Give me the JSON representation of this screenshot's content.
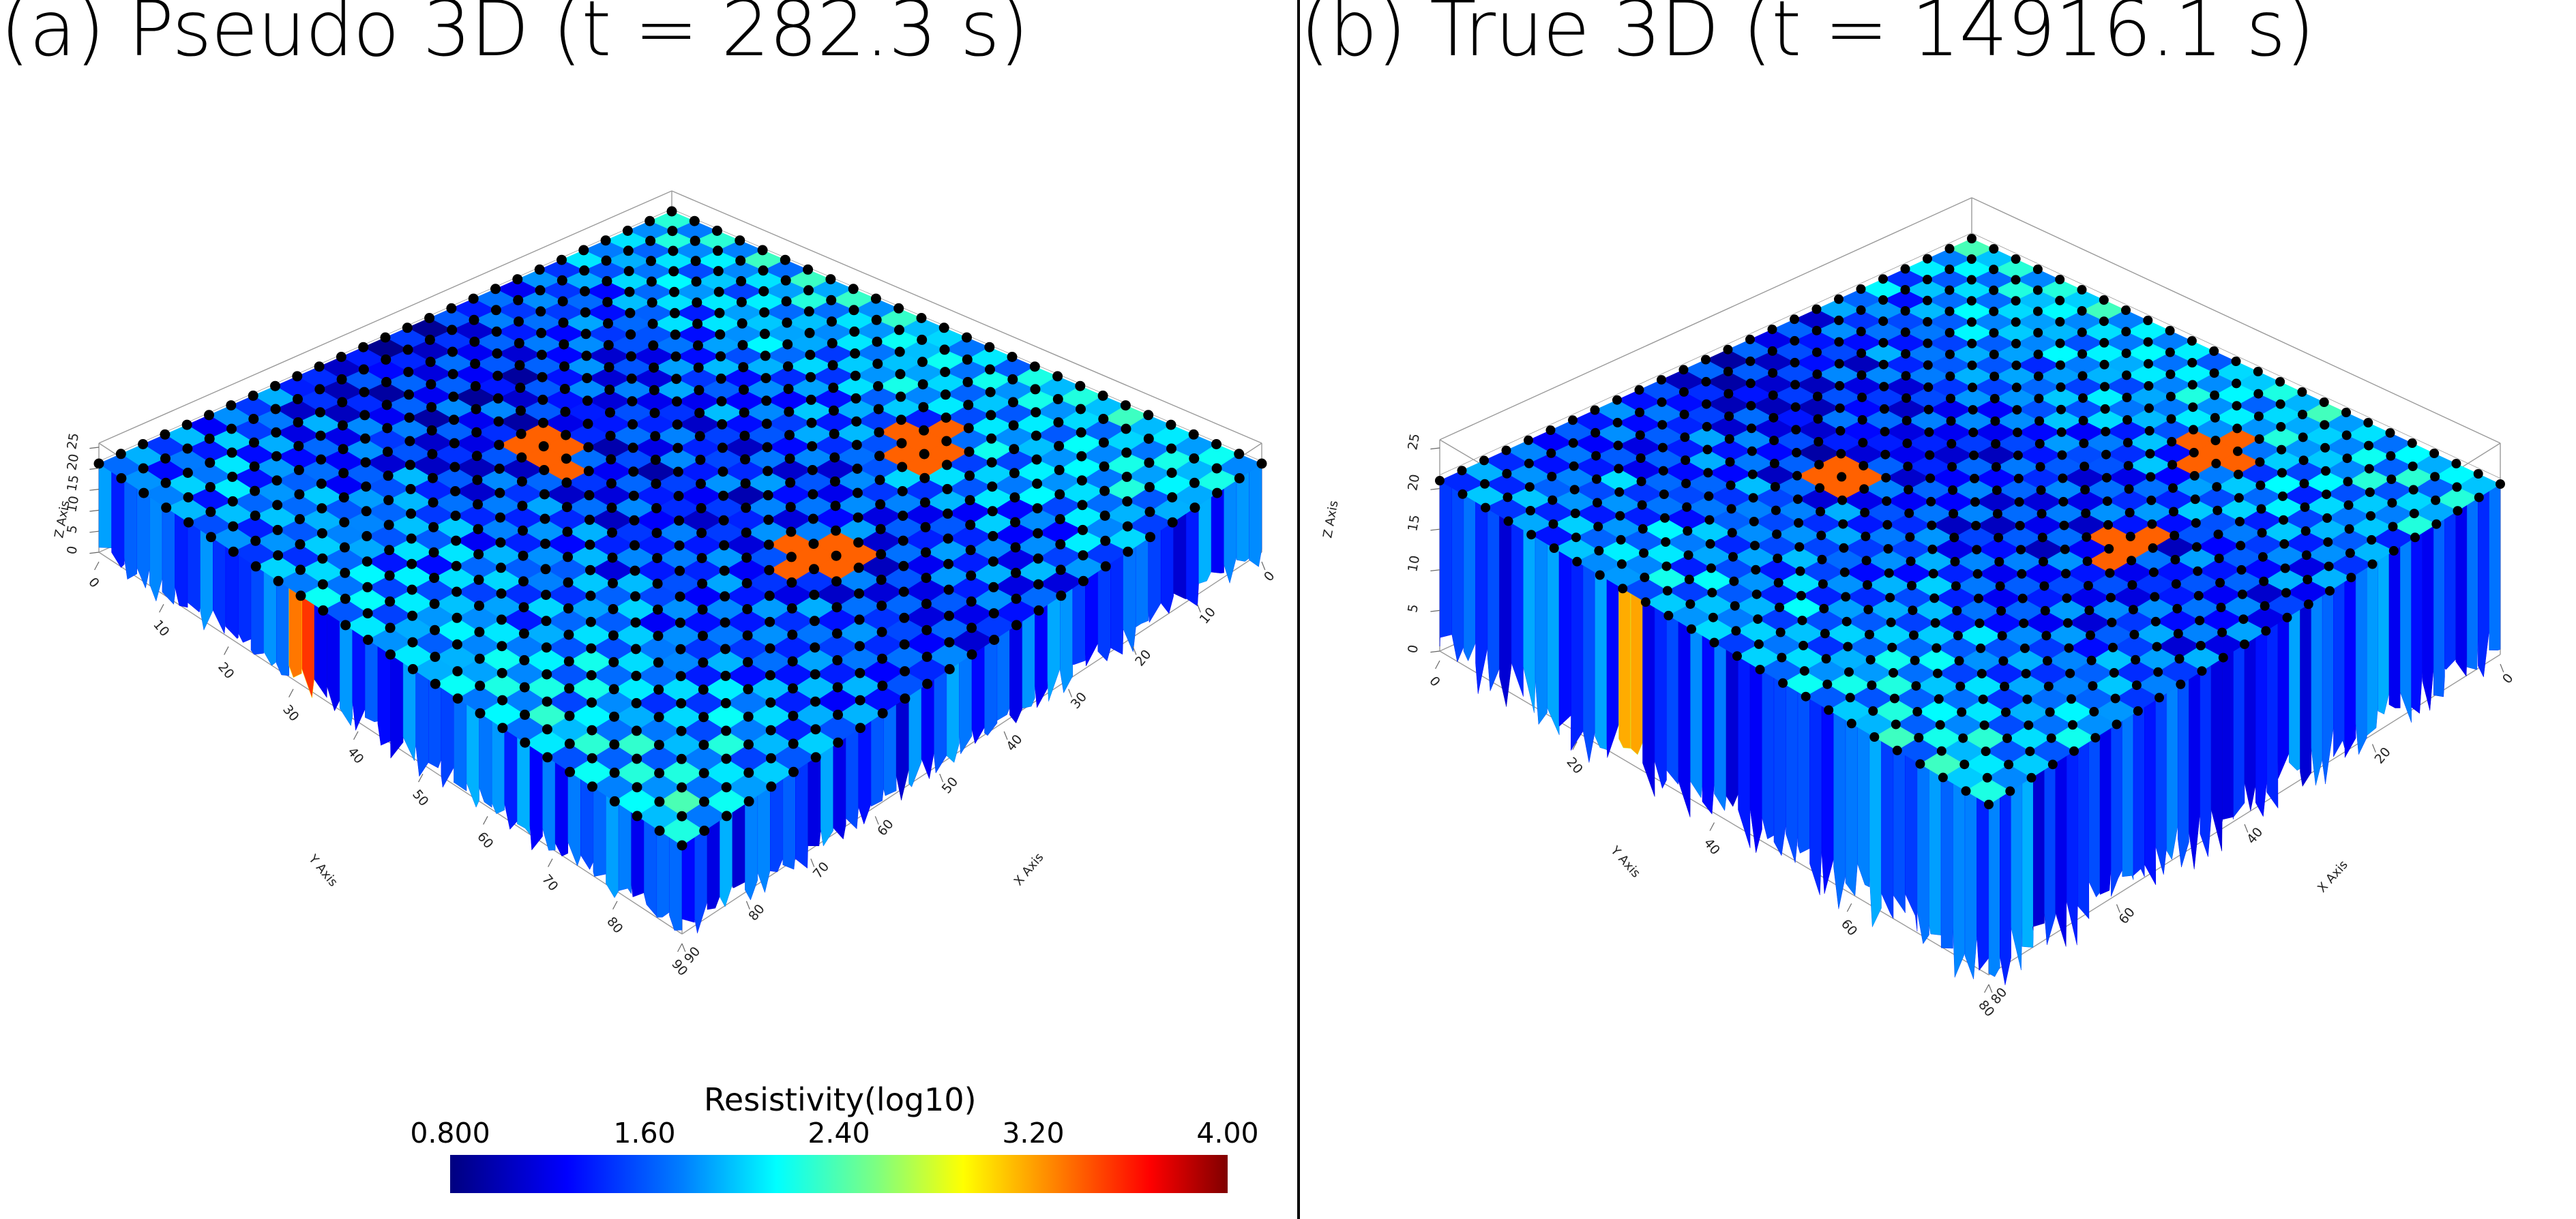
{
  "panels": [
    {
      "id": "a",
      "title": "(a) Pseudo 3D (t = 282.3 s)",
      "z_axis_label": "Z Axis",
      "y_axis_label": "Y Axis",
      "x_axis_label": "X Axis",
      "z_ticks": [
        "0",
        "5",
        "10",
        "15",
        "20",
        "25"
      ],
      "y_ticks": [
        "0",
        "10",
        "20",
        "30",
        "40",
        "50",
        "60",
        "70",
        "80",
        "90"
      ],
      "x_ticks": [
        "0",
        "10",
        "20",
        "30",
        "40",
        "50",
        "60",
        "70",
        "80",
        "90"
      ]
    },
    {
      "id": "b",
      "title": "(b) True 3D (t = 14916.1 s)",
      "z_axis_label": "Z Axis",
      "y_axis_label": "Y Axis",
      "x_axis_label": "X Axis",
      "z_ticks": [
        "0",
        "5",
        "10",
        "15",
        "20",
        "25"
      ],
      "y_ticks": [
        "0",
        "20",
        "40",
        "60",
        "80"
      ],
      "x_ticks": [
        "0",
        "20",
        "40",
        "60",
        "80"
      ]
    }
  ],
  "colorbar": {
    "title": "Resistivity(log10)",
    "ticks": [
      "0.800",
      "1.60",
      "2.40",
      "3.20",
      "4.00"
    ],
    "colors": [
      "#000080",
      "#0000ff",
      "#0080ff",
      "#00ffff",
      "#7fff7f",
      "#ffff00",
      "#ff8000",
      "#ff0000",
      "#800000"
    ]
  }
}
